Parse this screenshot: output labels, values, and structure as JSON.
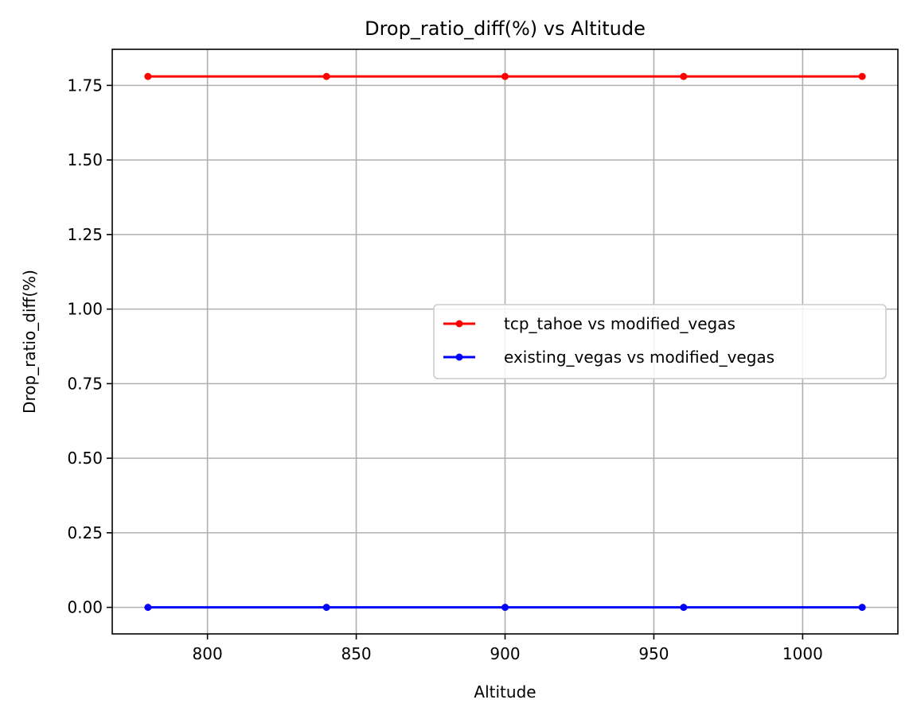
{
  "chart_data": {
    "type": "line",
    "title": "Drop_ratio_diff(%) vs Altitude",
    "xlabel": "Altitude",
    "ylabel": "Drop_ratio_diff(%)",
    "x": [
      780,
      840,
      900,
      960,
      1020
    ],
    "xlim": [
      768,
      1032
    ],
    "ylim": [
      -0.089,
      1.871
    ],
    "xticks": [
      800,
      850,
      900,
      950,
      1000
    ],
    "xtick_labels": [
      "800",
      "850",
      "900",
      "950",
      "1000"
    ],
    "yticks": [
      0.0,
      0.25,
      0.5,
      0.75,
      1.0,
      1.25,
      1.5,
      1.75
    ],
    "ytick_labels": [
      "0.00",
      "0.25",
      "0.50",
      "0.75",
      "1.00",
      "1.25",
      "1.50",
      "1.75"
    ],
    "grid": true,
    "legend_position": "center-right",
    "series": [
      {
        "name": "tcp_tahoe vs modified_vegas",
        "values": [
          1.78,
          1.78,
          1.78,
          1.78,
          1.78
        ],
        "color": "#ff0000",
        "marker": "circle"
      },
      {
        "name": "existing_vegas vs modified_vegas",
        "values": [
          0.0,
          0.0,
          0.0,
          0.0,
          0.0
        ],
        "color": "#0000ff",
        "marker": "circle"
      }
    ]
  }
}
